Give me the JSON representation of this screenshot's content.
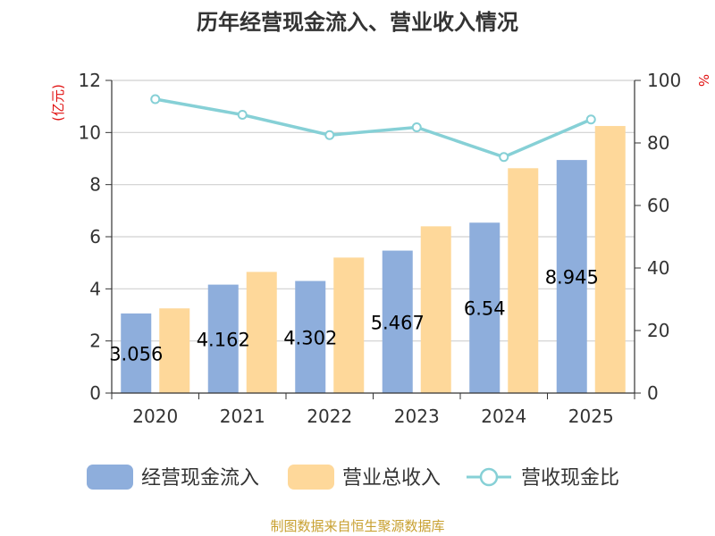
{
  "chart_data": {
    "type": "bar",
    "title": "历年经营现金流入、营业收入情况",
    "categories": [
      "2020",
      "2021",
      "2022",
      "2023",
      "2024",
      "2025"
    ],
    "series": [
      {
        "name": "经营现金流入",
        "type": "bar",
        "axis": "left",
        "color": "#8eaedc",
        "values": [
          3.056,
          4.162,
          4.302,
          5.467,
          6.54,
          8.945
        ],
        "labels": [
          "3.056",
          "4.162",
          "4.302",
          "5.467",
          "6.54",
          "8.945"
        ]
      },
      {
        "name": "营业总收入",
        "type": "bar",
        "axis": "left",
        "color": "#fed89a",
        "values": [
          3.25,
          4.65,
          5.2,
          6.4,
          8.63,
          10.25
        ]
      },
      {
        "name": "营收现金比",
        "type": "line",
        "axis": "right",
        "color": "#86d0d6",
        "values": [
          94,
          89,
          82.5,
          85,
          75.5,
          87.5
        ]
      }
    ],
    "y_left": {
      "label": "(亿元)",
      "ylim": [
        0,
        12
      ],
      "ticks": [
        "0",
        "2",
        "4",
        "6",
        "8",
        "10",
        "12"
      ]
    },
    "y_right": {
      "label": "%",
      "ylim": [
        0,
        100
      ],
      "ticks": [
        "0",
        "20",
        "40",
        "60",
        "80",
        "100"
      ]
    },
    "legend_position": "bottom",
    "grid": true
  },
  "source_text": "制图数据来自恒生聚源数据库"
}
